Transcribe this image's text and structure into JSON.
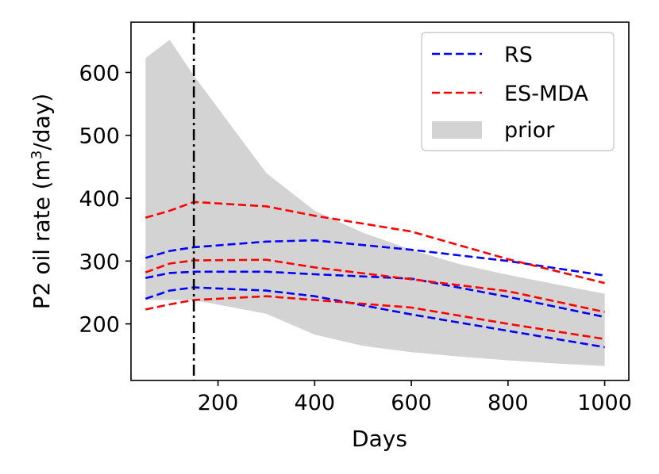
{
  "chart_data": {
    "type": "line",
    "title": "",
    "xlabel": "Days",
    "ylabel_prefix": "P2 oil rate (m",
    "ylabel_sup": "3",
    "ylabel_suffix": "/day)",
    "xlim": [
      20,
      1050
    ],
    "ylim": [
      110,
      680
    ],
    "xticks": [
      200,
      400,
      600,
      800,
      1000
    ],
    "yticks": [
      200,
      300,
      400,
      500,
      600
    ],
    "xtick_labels": [
      "200",
      "400",
      "600",
      "800",
      "1000"
    ],
    "ytick_labels": [
      "200",
      "300",
      "400",
      "500",
      "600"
    ],
    "vline_x": 150,
    "legend": {
      "position": "top-right",
      "entries": [
        {
          "label": "RS",
          "color": "#0000ff",
          "style": "dashed"
        },
        {
          "label": "ES-MDA",
          "color": "#ff0000",
          "style": "dashed"
        },
        {
          "label": "prior",
          "color": "#d3d3d3",
          "style": "fill"
        }
      ]
    },
    "prior_band": {
      "x": [
        50,
        100,
        150,
        300,
        400,
        500,
        600,
        700,
        800,
        900,
        1000
      ],
      "lower": [
        238,
        238,
        238,
        216,
        183,
        165,
        155,
        148,
        142,
        137,
        133
      ],
      "upper": [
        623,
        652,
        595,
        440,
        380,
        345,
        318,
        295,
        278,
        263,
        248
      ]
    },
    "series": [
      {
        "name": "RS",
        "group": "RS",
        "color": "#0000ff",
        "x": [
          50,
          100,
          150,
          300,
          400,
          600,
          800,
          1000
        ],
        "values": [
          305,
          316,
          322,
          331,
          333,
          318,
          300,
          277
        ]
      },
      {
        "name": "RS",
        "group": "RS",
        "color": "#0000ff",
        "x": [
          50,
          100,
          150,
          300,
          400,
          600,
          800,
          1000
        ],
        "values": [
          273,
          281,
          283,
          283,
          279,
          272,
          243,
          211
        ]
      },
      {
        "name": "RS",
        "group": "RS",
        "color": "#0000ff",
        "x": [
          50,
          100,
          150,
          300,
          400,
          600,
          800,
          1000
        ],
        "values": [
          240,
          253,
          258,
          253,
          244,
          215,
          189,
          163
        ]
      },
      {
        "name": "ES-MDA",
        "group": "ES-MDA",
        "color": "#ff0000",
        "x": [
          50,
          100,
          150,
          300,
          400,
          600,
          800,
          1000
        ],
        "values": [
          369,
          380,
          394,
          387,
          372,
          347,
          303,
          265
        ]
      },
      {
        "name": "ES-MDA",
        "group": "ES-MDA",
        "color": "#ff0000",
        "x": [
          50,
          100,
          150,
          300,
          400,
          600,
          800,
          1000
        ],
        "values": [
          282,
          296,
          301,
          302,
          290,
          271,
          252,
          219
        ]
      },
      {
        "name": "ES-MDA",
        "group": "ES-MDA",
        "color": "#ff0000",
        "x": [
          50,
          100,
          150,
          300,
          400,
          600,
          800,
          1000
        ],
        "values": [
          223,
          231,
          238,
          244,
          238,
          226,
          200,
          176
        ]
      }
    ]
  }
}
